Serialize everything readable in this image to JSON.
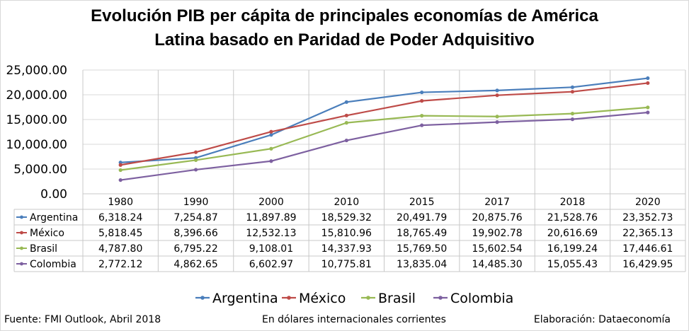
{
  "chart_data": {
    "type": "line",
    "title_lines": [
      "Evolución PIB per cápita de principales economías de América",
      "Latina basado en Paridad de Poder Adquisitivo"
    ],
    "categories": [
      "1980",
      "1990",
      "2000",
      "2010",
      "2015",
      "2017",
      "2018",
      "2020"
    ],
    "ylim": [
      0,
      25000
    ],
    "yticks": [
      "0.00",
      "5,000.00",
      "10,000.00",
      "15,000.00",
      "20,000.00",
      "25,000.00"
    ],
    "grid": true,
    "legend_position": "bottom",
    "series": [
      {
        "name": "Argentina",
        "color": "#4a7ebb",
        "values": [
          6318.24,
          7254.87,
          11897.89,
          18529.32,
          20491.79,
          20875.76,
          21528.76,
          23352.73
        ],
        "labels": [
          "6,318.24",
          "7,254.87",
          "11,897.89",
          "18,529.32",
          "20,491.79",
          "20,875.76",
          "21,528.76",
          "23,352.73"
        ]
      },
      {
        "name": "México",
        "color": "#be4b48",
        "values": [
          5818.45,
          8396.66,
          12532.13,
          15810.96,
          18765.49,
          19902.78,
          20616.69,
          22365.13
        ],
        "labels": [
          "5,818.45",
          "8,396.66",
          "12,532.13",
          "15,810.96",
          "18,765.49",
          "19,902.78",
          "20,616.69",
          "22,365.13"
        ]
      },
      {
        "name": "Brasil",
        "color": "#98b954",
        "values": [
          4787.8,
          6795.22,
          9108.01,
          14337.93,
          15769.5,
          15602.54,
          16199.24,
          17446.61
        ],
        "labels": [
          "4,787.80",
          "6,795.22",
          "9,108.01",
          "14,337.93",
          "15,769.50",
          "15,602.54",
          "16,199.24",
          "17,446.61"
        ]
      },
      {
        "name": "Colombia",
        "color": "#7d60a0",
        "values": [
          2772.12,
          4862.65,
          6602.97,
          10775.81,
          13835.04,
          14485.3,
          15055.43,
          16429.95
        ],
        "labels": [
          "2,772.12",
          "4,862.65",
          "6,602.97",
          "10,775.81",
          "13,835.04",
          "14,485.30",
          "15,055.43",
          "16,429.95"
        ]
      }
    ]
  },
  "footer": {
    "source": "Fuente: FMI Outlook, Abril 2018",
    "units": "En dólares internacionales corrientes",
    "credit": "Elaboración: Dataeconomía"
  },
  "colors": {
    "grid": "#d9d9d9",
    "table_border": "#c8c8c8"
  }
}
